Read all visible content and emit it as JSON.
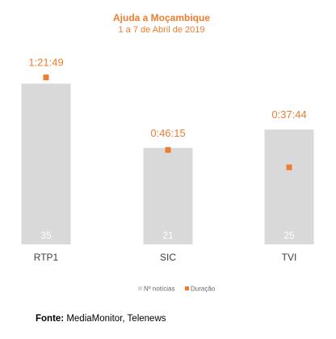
{
  "chart_data": {
    "type": "bar",
    "title": "Ajuda a Moçambique",
    "subtitle": "1 a 7 de Abril de 2019",
    "categories": [
      "RTP1",
      "SIC",
      "TVI"
    ],
    "series": [
      {
        "name": "Nº notícias",
        "type": "bar",
        "values": [
          35,
          21,
          25
        ],
        "color": "#d9d9d9"
      },
      {
        "name": "Duração",
        "type": "scatter",
        "values": [
          "1:21:49",
          "0:46:15",
          "0:37:44"
        ],
        "seconds": [
          4909,
          2775,
          2264
        ],
        "color": "#ed7d31"
      }
    ],
    "ylim_count": [
      0,
      40
    ],
    "ylim_duration_seconds": [
      0,
      5400
    ],
    "grid": false,
    "legend_position": "bottom"
  },
  "source": {
    "label": "Fonte:",
    "text": " MediaMonitor, Telenews"
  },
  "colors": {
    "accent": "#ed7d31",
    "bar": "#d9d9d9"
  }
}
